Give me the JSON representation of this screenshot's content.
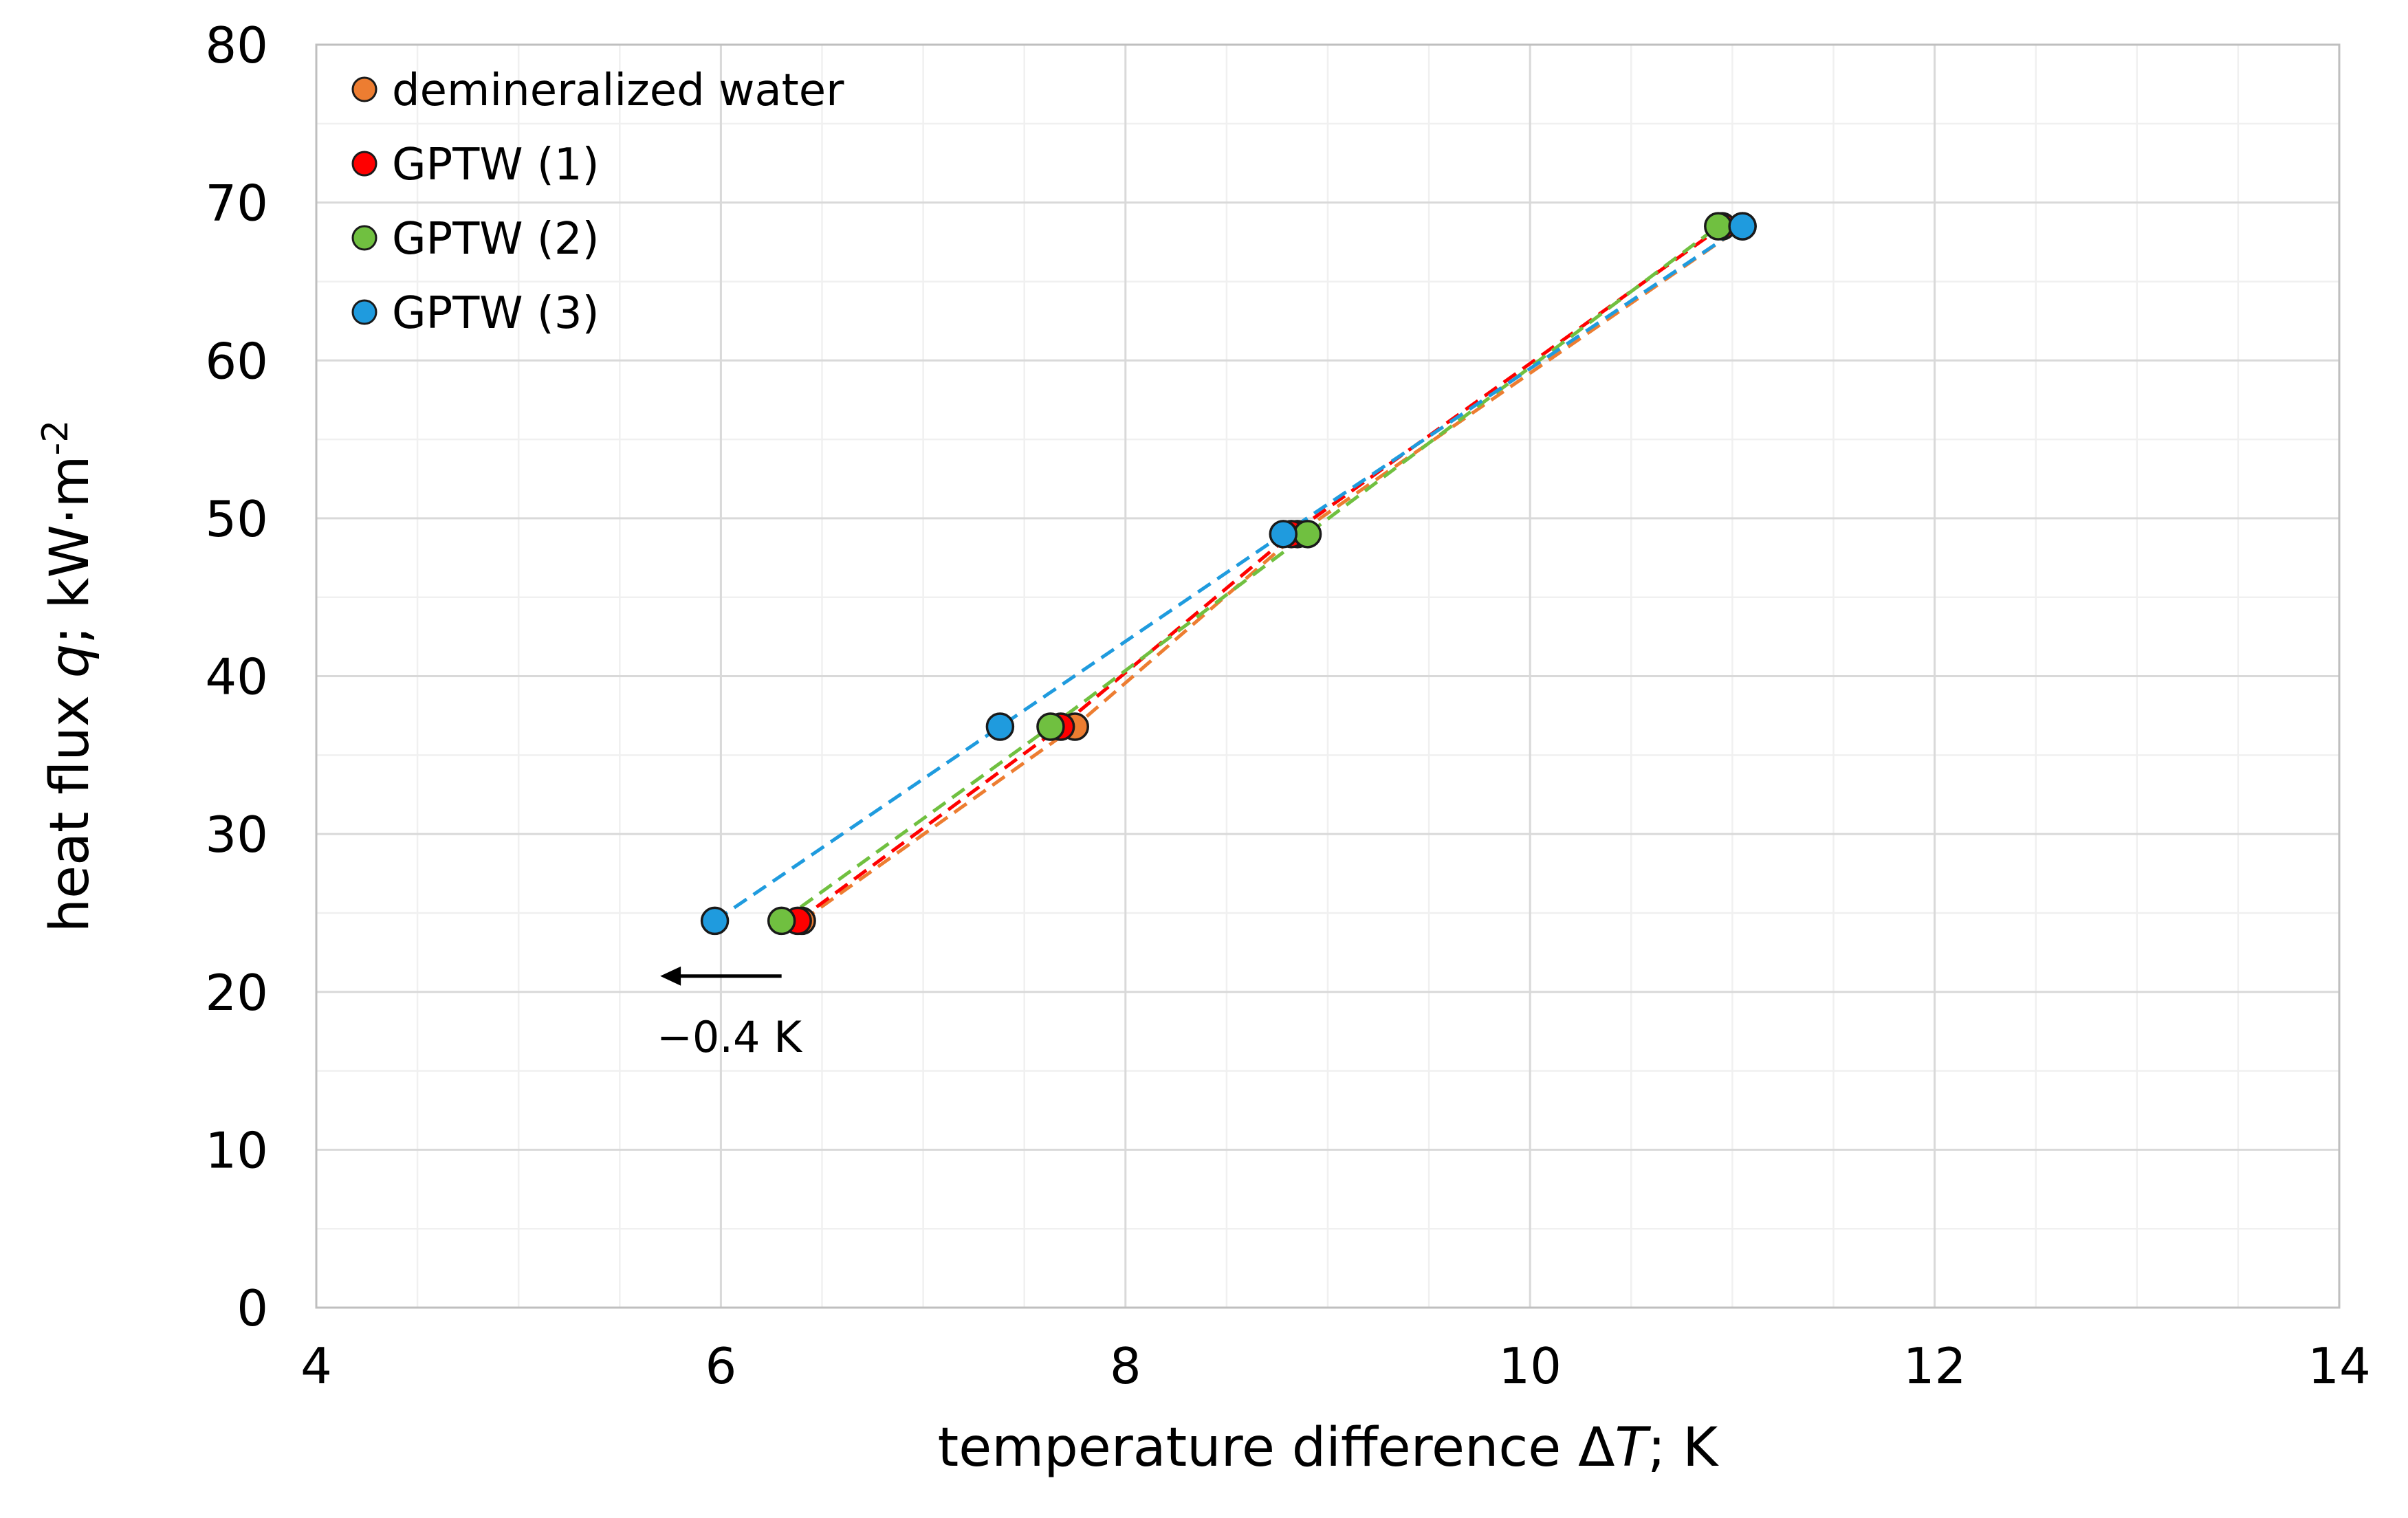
{
  "chart_data": {
    "type": "scatter",
    "title": "",
    "xlabel": "temperature difference ΔT; K",
    "xlabel_parts": [
      "temperature difference Δ",
      "T",
      "; K"
    ],
    "ylabel": "heat flux q; kW·m-2",
    "ylabel_parts": [
      "heat flux ",
      "q",
      "; kW·m",
      "-2"
    ],
    "xlim": [
      4,
      14
    ],
    "ylim": [
      0,
      80
    ],
    "x_ticks": [
      "4",
      "6",
      "8",
      "10",
      "12",
      "14"
    ],
    "y_ticks": [
      "0",
      "10",
      "20",
      "30",
      "40",
      "50",
      "60",
      "70",
      "80"
    ],
    "x_tick_values": [
      4,
      6,
      8,
      10,
      12,
      14
    ],
    "y_tick_values": [
      0,
      10,
      20,
      30,
      40,
      50,
      60,
      70,
      80
    ],
    "grid": true,
    "legend_position": "top-left",
    "series": [
      {
        "name": "demineralized water",
        "color": "#ED7D31",
        "points": [
          [
            6.4,
            24.5
          ],
          [
            7.75,
            36.8
          ],
          [
            8.85,
            49.0
          ],
          [
            11.05,
            68.5
          ]
        ]
      },
      {
        "name": "GPTW (1)",
        "color": "#FF0000",
        "points": [
          [
            6.38,
            24.5
          ],
          [
            7.68,
            36.8
          ],
          [
            8.82,
            49.0
          ],
          [
            10.95,
            68.5
          ]
        ]
      },
      {
        "name": "GPTW (2)",
        "color": "#70C040",
        "points": [
          [
            6.3,
            24.5
          ],
          [
            7.63,
            36.8
          ],
          [
            8.9,
            49.0
          ],
          [
            10.93,
            68.5
          ]
        ]
      },
      {
        "name": "GPTW (3)",
        "color": "#1F9BDE",
        "points": [
          [
            5.97,
            24.5
          ],
          [
            7.38,
            36.8
          ],
          [
            8.78,
            49.0
          ],
          [
            11.05,
            68.5
          ]
        ]
      }
    ],
    "annotation": {
      "text": "−0.4 K",
      "arrow_from": [
        6.3,
        21.0
      ],
      "arrow_to": [
        5.7,
        21.0
      ]
    }
  }
}
